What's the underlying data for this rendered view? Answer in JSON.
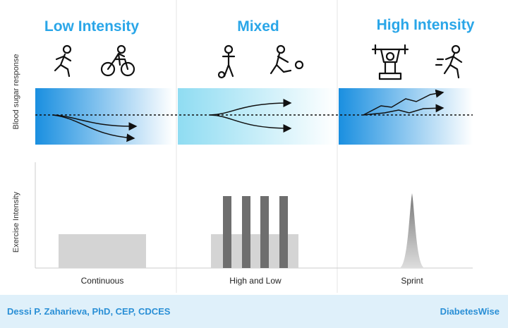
{
  "columns": [
    {
      "title": "Low Intensity",
      "label": "Continuous"
    },
    {
      "title": "Mixed",
      "label": "High and Low"
    },
    {
      "title": "High Intensity",
      "label": "Sprint"
    }
  ],
  "axes": {
    "top": "Blood sugar response",
    "bottom": "Exercise Intensity"
  },
  "footer": {
    "author": "Dessi P. Zaharieva, PhD, CEP, CDCES",
    "brand": "DiabetesWise"
  }
}
